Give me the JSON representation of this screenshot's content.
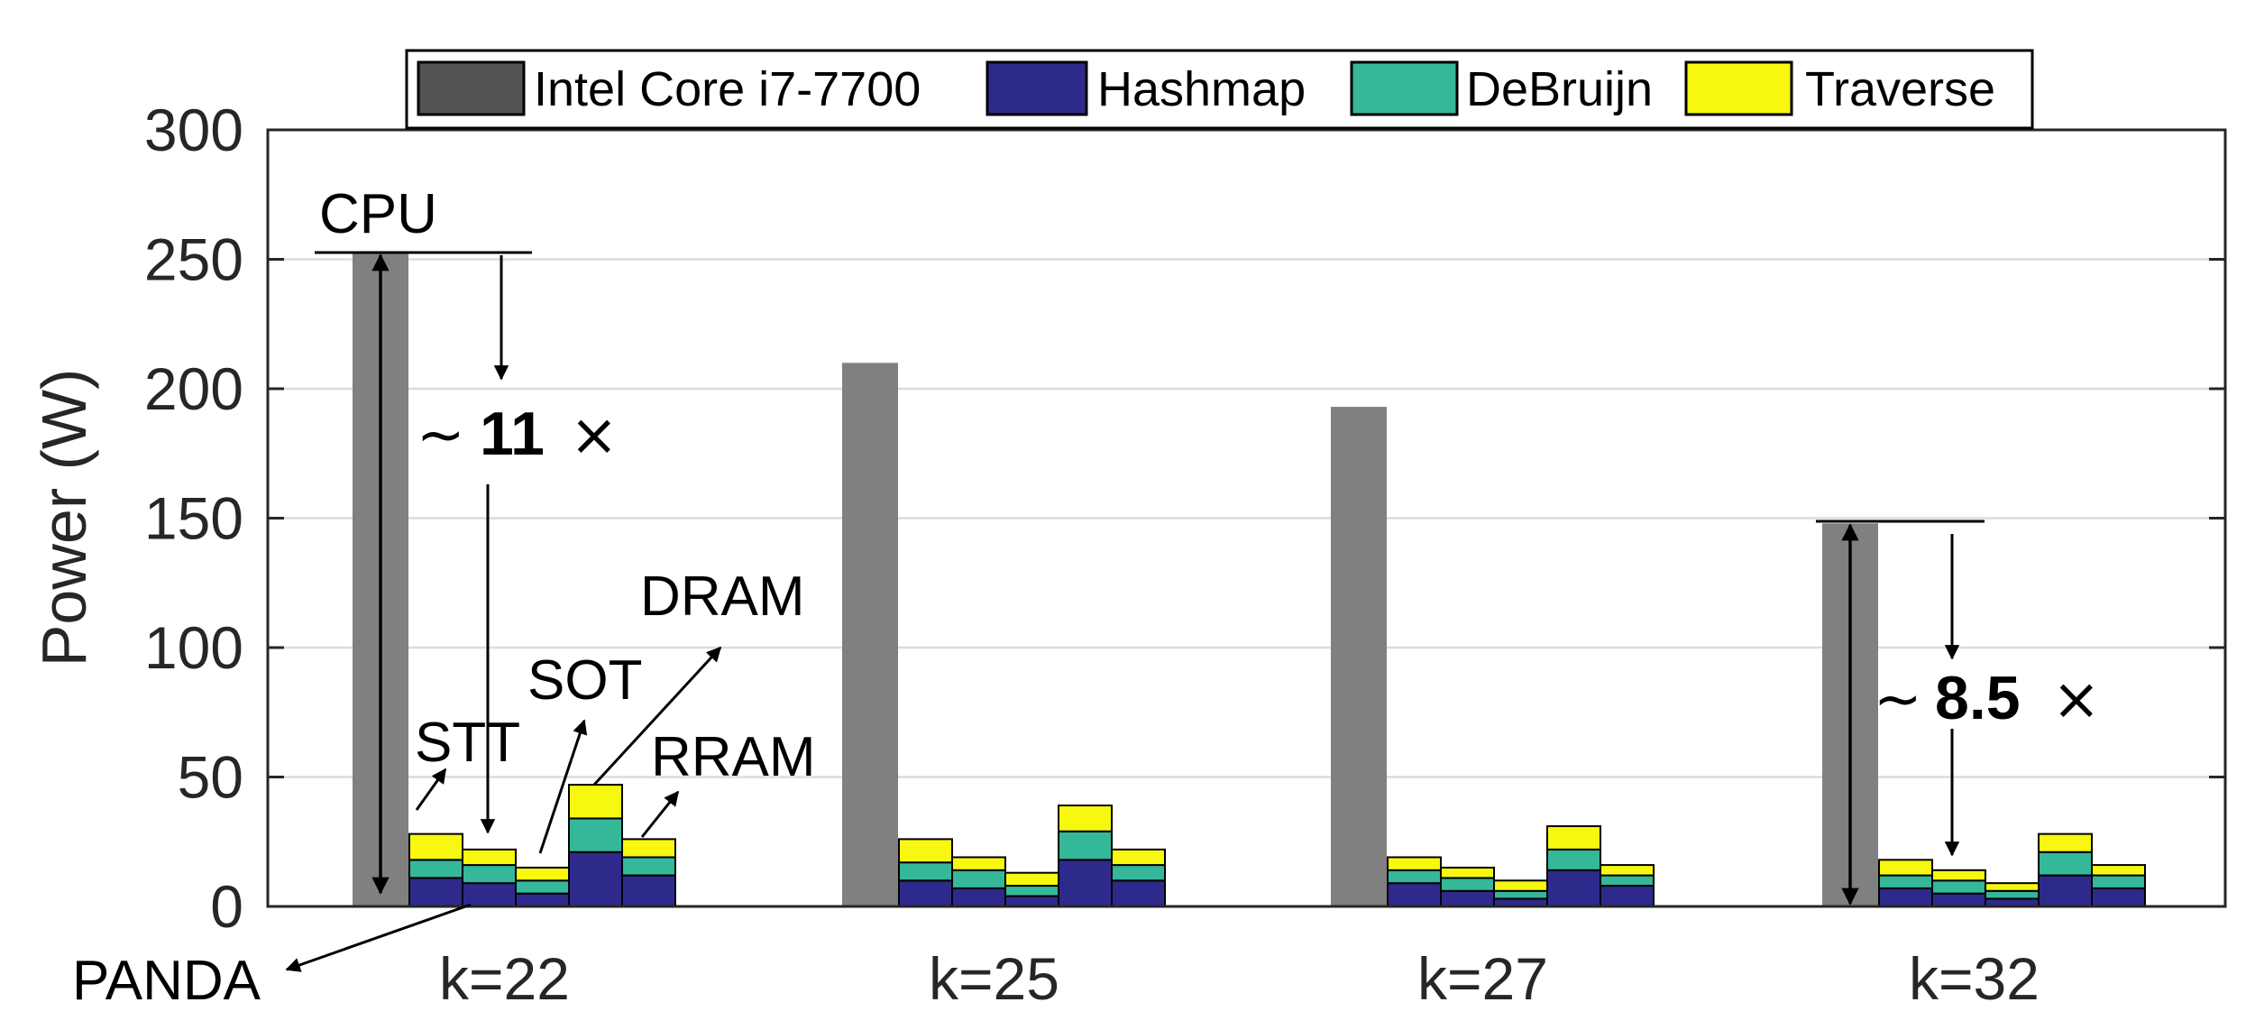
{
  "chart_data": {
    "type": "bar",
    "ylabel": "Power (W)",
    "xlabel": "",
    "ylim": [
      0,
      300
    ],
    "yticks": [
      "0",
      "50",
      "100",
      "150",
      "200",
      "250",
      "300"
    ],
    "grid": true,
    "legend_position": "top",
    "categories": [
      "k=22",
      "k=25",
      "k=27",
      "k=32"
    ],
    "legend": [
      {
        "name": "Intel Core i7-7700",
        "color": "#808080"
      },
      {
        "name": "Hashmap",
        "color": "#2e2a8c"
      },
      {
        "name": "DeBruijn",
        "color": "#35b79a"
      },
      {
        "name": "Traverse",
        "color": "#f7f70f"
      }
    ],
    "cpu_power": [
      253,
      210,
      193,
      148
    ],
    "stacked_configs": [
      "STT",
      "SOT",
      "PANDA",
      "DRAM",
      "RRAM"
    ],
    "stacked": {
      "k=22": [
        {
          "hashmap": 11,
          "debruijn": 7,
          "traverse": 10
        },
        {
          "hashmap": 9,
          "debruijn": 7,
          "traverse": 6
        },
        {
          "hashmap": 5,
          "debruijn": 5,
          "traverse": 5
        },
        {
          "hashmap": 21,
          "debruijn": 13,
          "traverse": 13
        },
        {
          "hashmap": 12,
          "debruijn": 7,
          "traverse": 7
        }
      ],
      "k=25": [
        {
          "hashmap": 10,
          "debruijn": 7,
          "traverse": 9
        },
        {
          "hashmap": 7,
          "debruijn": 7,
          "traverse": 5
        },
        {
          "hashmap": 4,
          "debruijn": 4,
          "traverse": 5
        },
        {
          "hashmap": 18,
          "debruijn": 11,
          "traverse": 10
        },
        {
          "hashmap": 10,
          "debruijn": 6,
          "traverse": 6
        }
      ],
      "k=27": [
        {
          "hashmap": 9,
          "debruijn": 5,
          "traverse": 5
        },
        {
          "hashmap": 6,
          "debruijn": 5,
          "traverse": 4
        },
        {
          "hashmap": 3,
          "debruijn": 3,
          "traverse": 4
        },
        {
          "hashmap": 14,
          "debruijn": 8,
          "traverse": 9
        },
        {
          "hashmap": 8,
          "debruijn": 4,
          "traverse": 4
        }
      ],
      "k=32": [
        {
          "hashmap": 7,
          "debruijn": 5,
          "traverse": 6
        },
        {
          "hashmap": 5,
          "debruijn": 5,
          "traverse": 4
        },
        {
          "hashmap": 3,
          "debruijn": 3,
          "traverse": 3
        },
        {
          "hashmap": 12,
          "debruijn": 9,
          "traverse": 7
        },
        {
          "hashmap": 7,
          "debruijn": 5,
          "traverse": 4
        }
      ]
    },
    "annotations": {
      "cpu": "CPU",
      "stt": "STT",
      "sot": "SOT",
      "dram": "DRAM",
      "rram": "RRAM",
      "panda": "PANDA",
      "ratio_symbol": "~",
      "times_symbol": "×",
      "ratio_k22": "11",
      "ratio_k32": "8.5"
    }
  }
}
